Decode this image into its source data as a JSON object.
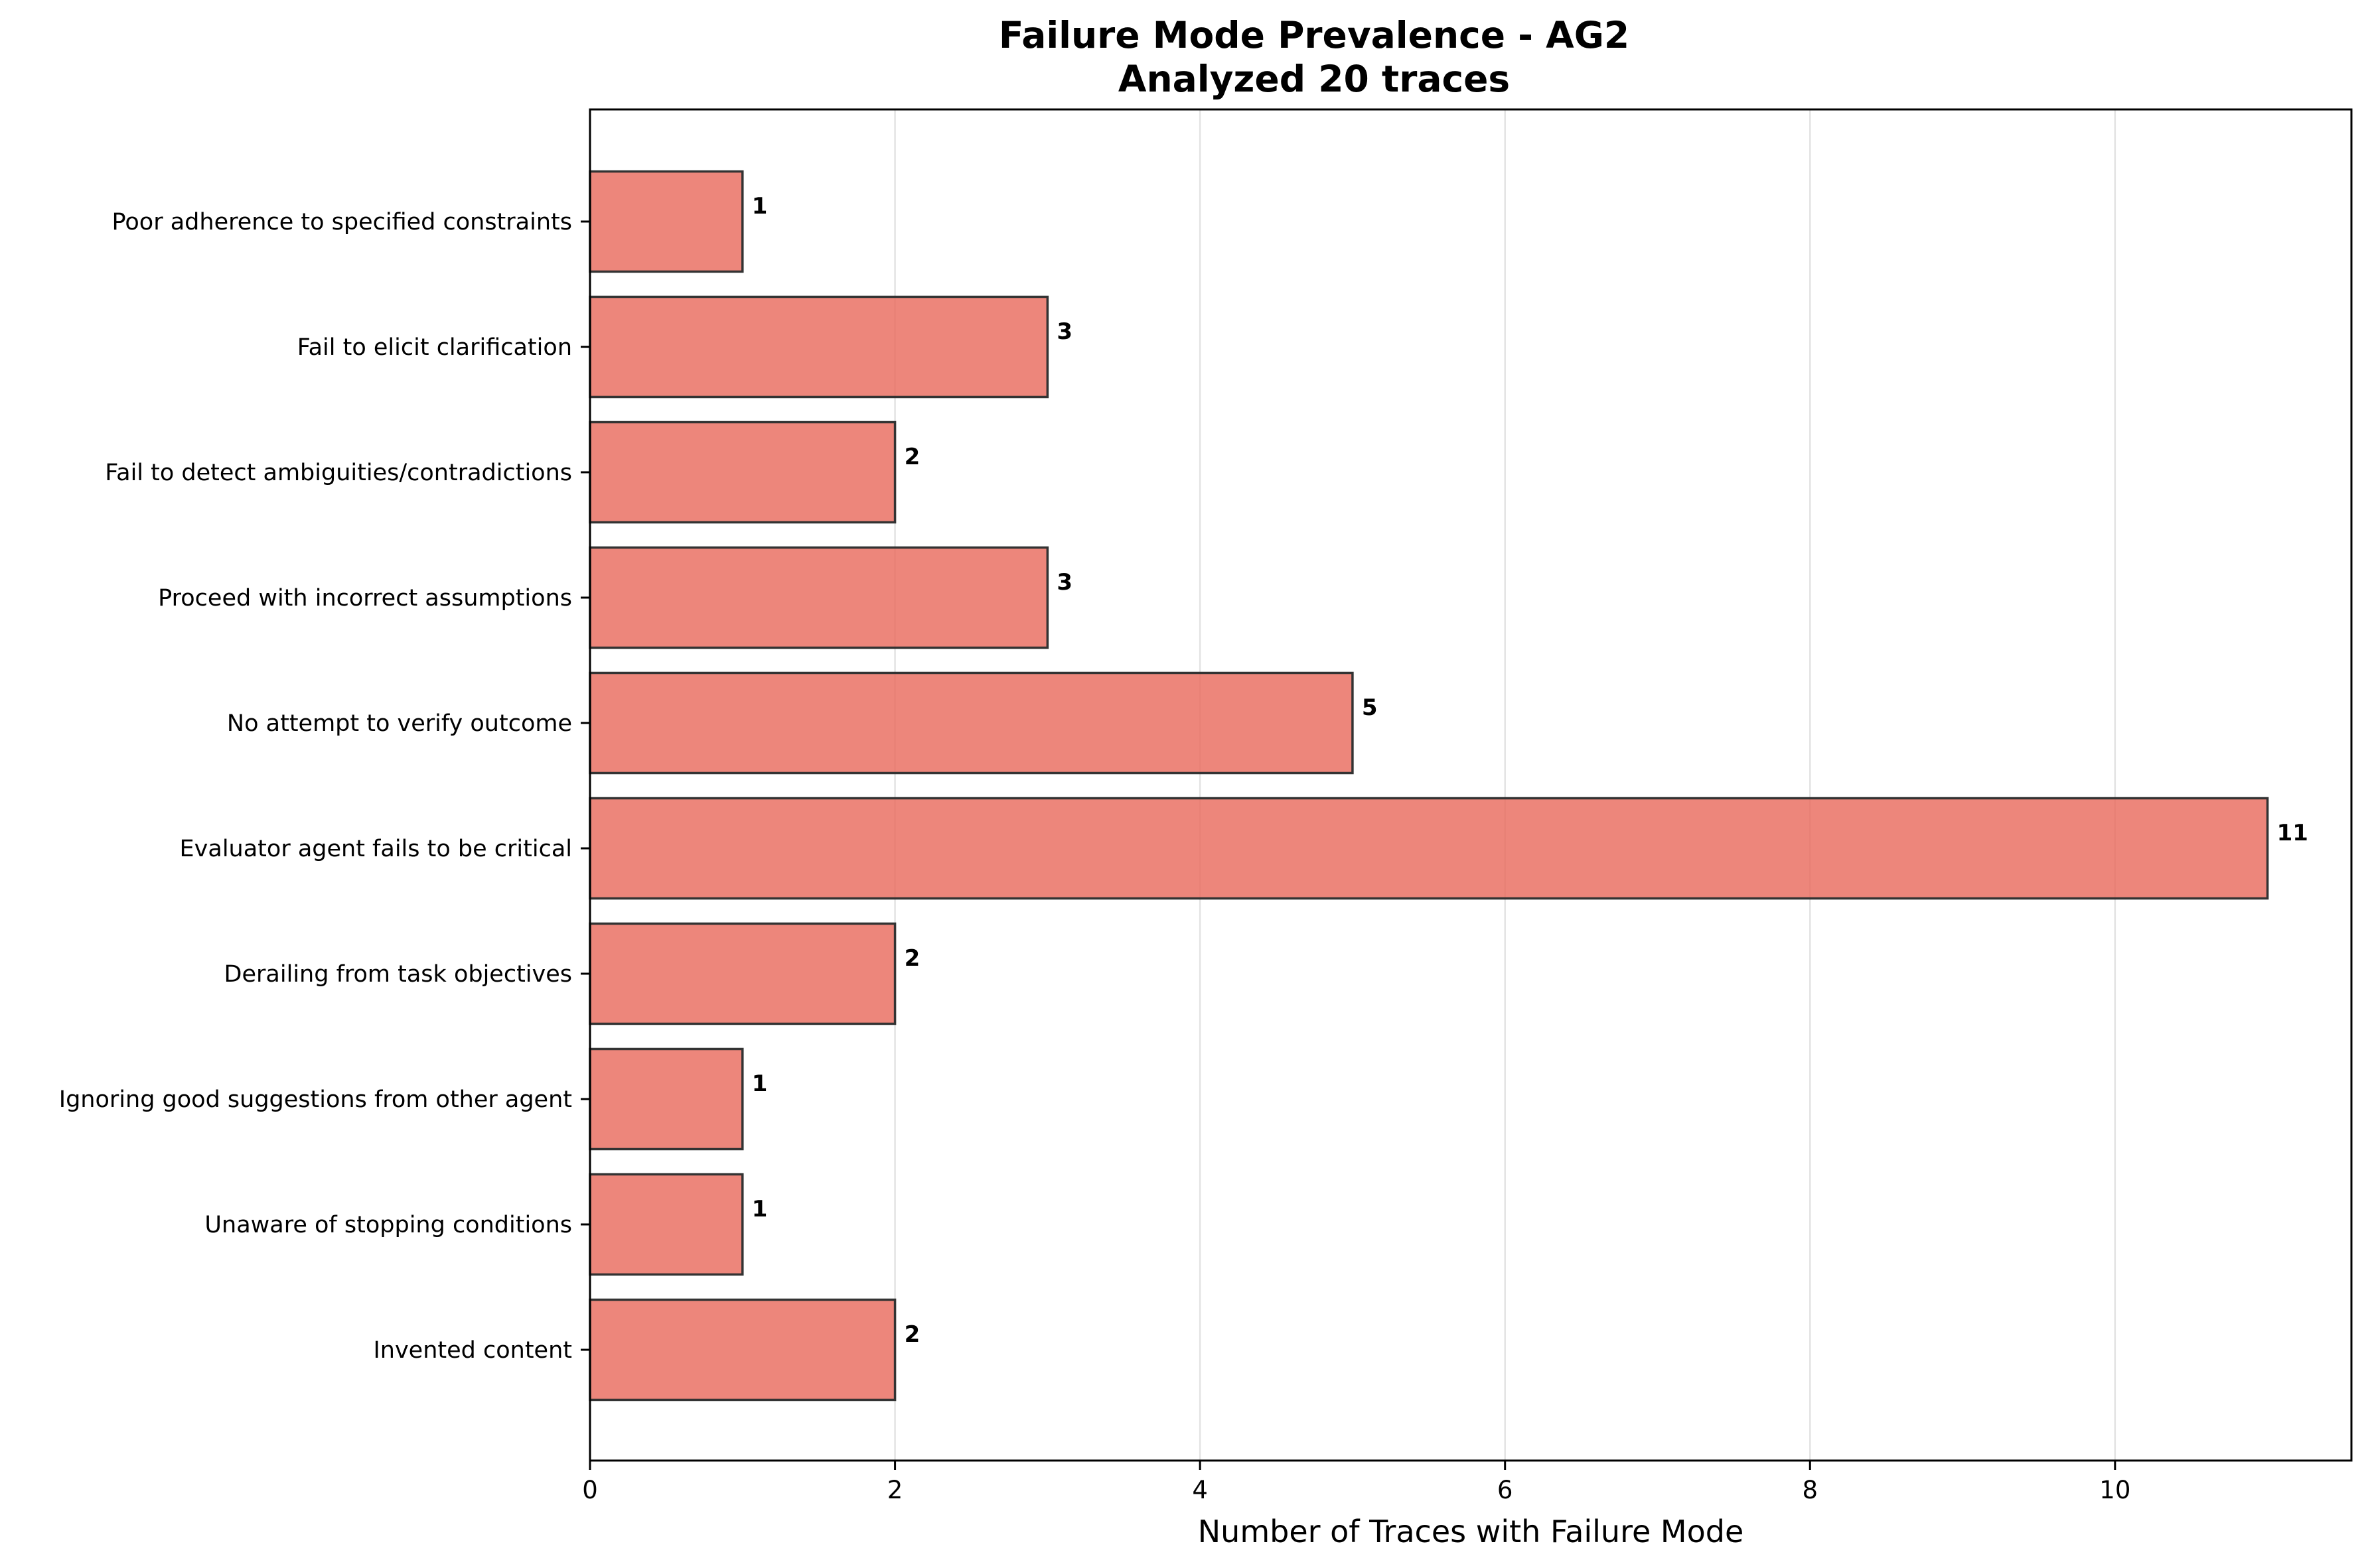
{
  "chart_data": {
    "type": "bar",
    "orientation": "horizontal",
    "title": "Failure Mode Prevalence - AG2",
    "subtitle": "Analyzed 20 traces",
    "xlabel": "Number of Traces with Failure Mode",
    "ylabel": "",
    "xlim": [
      0,
      11.55
    ],
    "xticks": [
      "0",
      "2",
      "4",
      "6",
      "8",
      "10"
    ],
    "grid": "x",
    "legend": "none",
    "bar_color": "#e8685a",
    "bar_edge_color": "#333333",
    "categories": [
      "Poor adherence to specified constraints",
      "Fail to elicit clarification",
      "Fail to detect ambiguities/contradictions",
      "Proceed with incorrect assumptions",
      "No attempt to verify outcome",
      "Evaluator agent fails to be critical",
      "Derailing from task objectives",
      "Ignoring good suggestions from other agent",
      "Unaware of stopping conditions",
      "Invented content"
    ],
    "values": [
      1,
      3,
      2,
      3,
      5,
      11,
      2,
      1,
      1,
      2
    ],
    "data_labels": [
      "1",
      "3",
      "2",
      "3",
      "5",
      "11",
      "2",
      "1",
      "1",
      "2"
    ]
  }
}
